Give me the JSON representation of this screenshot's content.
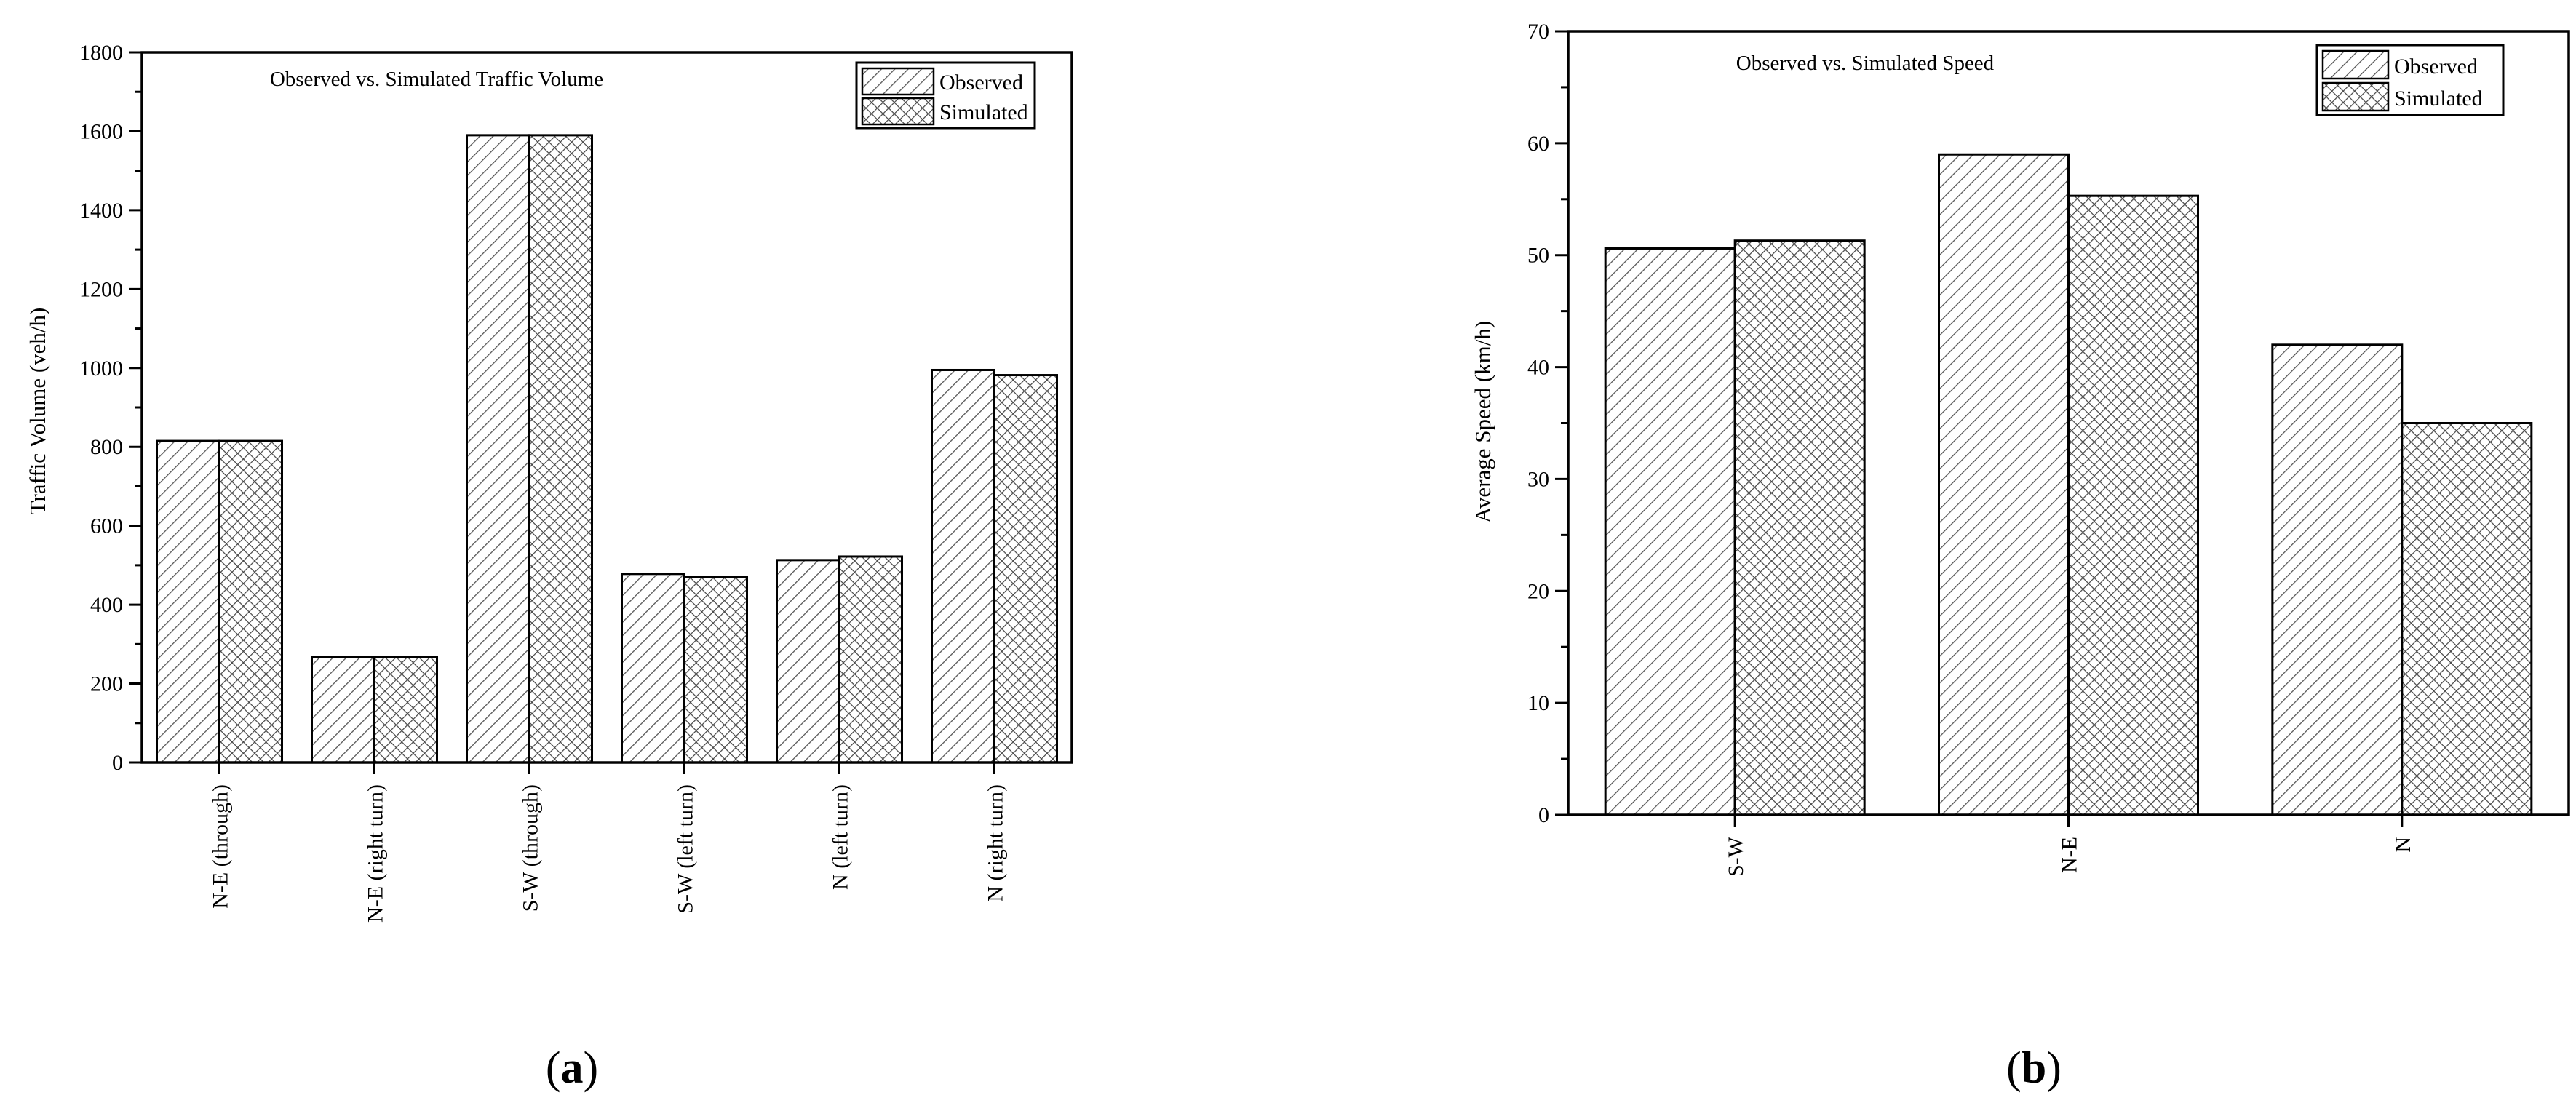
{
  "figure": {
    "panels": [
      {
        "label_open": "(",
        "label_letter": "a",
        "label_close": ")"
      },
      {
        "label_open": "(",
        "label_letter": "b",
        "label_close": ")"
      }
    ]
  },
  "chart_data": [
    {
      "type": "bar",
      "title": "Observed vs. Simulated Traffic Volume",
      "xlabel": "",
      "ylabel": "Traffic Volume (veh/h)",
      "ylim": [
        0,
        1800
      ],
      "yticks": [
        0,
        200,
        400,
        600,
        800,
        1000,
        1200,
        1400,
        1600,
        1800
      ],
      "categories": [
        "N-E (through)",
        "N-E (right turn)",
        "S-W (through)",
        "S-W (left turn)",
        "N (left turn)",
        "N (right turn)"
      ],
      "series": [
        {
          "name": "Observed",
          "pattern": "diagonal-hatch",
          "values": [
            815,
            268,
            1590,
            478,
            513,
            995
          ]
        },
        {
          "name": "Simulated",
          "pattern": "cross-hatch",
          "values": [
            815,
            268,
            1590,
            470,
            522,
            982
          ]
        }
      ],
      "legend": "top-right",
      "grid": false
    },
    {
      "type": "bar",
      "title": "Observed vs. Simulated Speed",
      "xlabel": "",
      "ylabel": "Average Speed (km/h)",
      "ylim": [
        0,
        70
      ],
      "yticks": [
        0,
        10,
        20,
        30,
        40,
        50,
        60,
        70
      ],
      "categories": [
        "S-W",
        "N-E",
        "N"
      ],
      "series": [
        {
          "name": "Observed",
          "pattern": "diagonal-hatch",
          "values": [
            50.6,
            59.0,
            42.0
          ]
        },
        {
          "name": "Simulated",
          "pattern": "cross-hatch",
          "values": [
            51.3,
            55.3,
            35.0
          ]
        }
      ],
      "legend": "top-right",
      "grid": false
    }
  ]
}
